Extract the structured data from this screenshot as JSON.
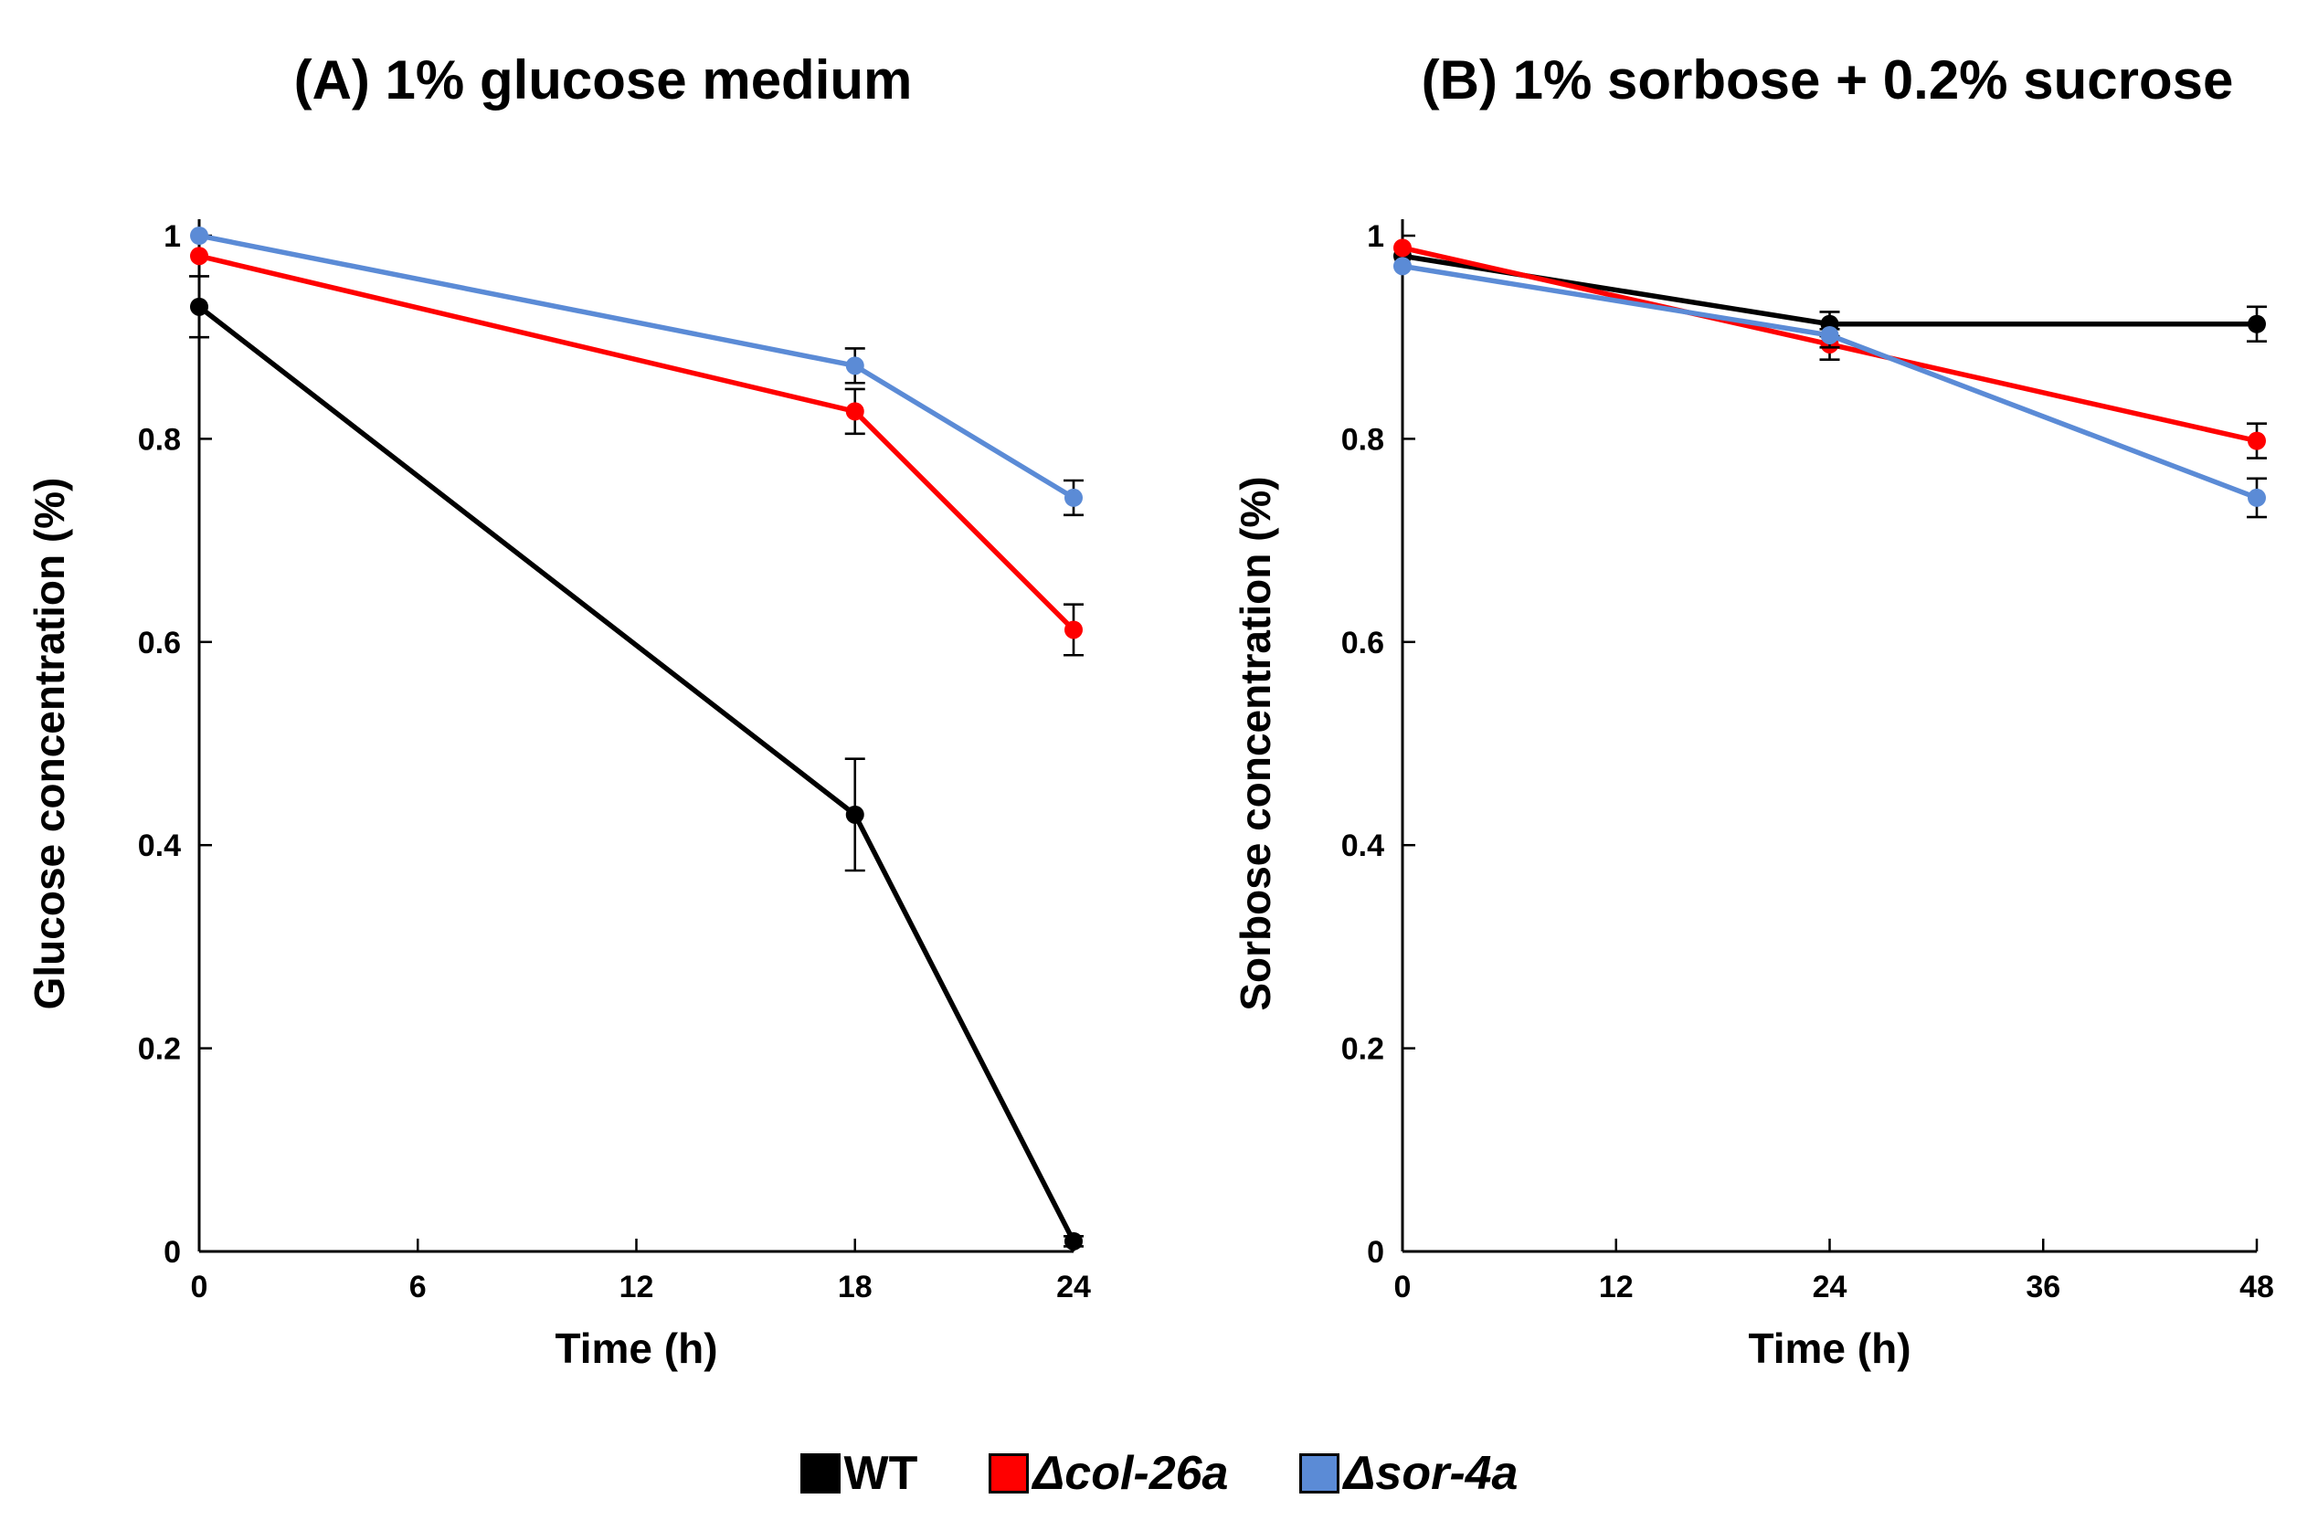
{
  "chart_data": [
    {
      "type": "line",
      "title": "(A) 1% glucose medium",
      "xlabel": "Time (h)",
      "ylabel": "Glucose concentration (%)",
      "xlim": [
        0,
        24
      ],
      "ylim": [
        0,
        1
      ],
      "xticks": [
        0,
        6,
        12,
        18,
        24
      ],
      "yticks": [
        0,
        0.2,
        0.4,
        0.6,
        0.8,
        1
      ],
      "ytick_labels": [
        "0",
        "0.2",
        "0.4",
        "0.6",
        "0.8",
        "1"
      ],
      "x": [
        0,
        18,
        24
      ],
      "series": [
        {
          "name": "WT",
          "color": "#000000",
          "values": [
            0.93,
            0.43,
            0.01
          ],
          "errors": [
            0.03,
            0.055,
            0.005
          ]
        },
        {
          "name": "Δcol-26a",
          "color": "#ff0000",
          "values": [
            0.98,
            0.827,
            0.612
          ],
          "errors": [
            0.0,
            0.022,
            0.025
          ]
        },
        {
          "name": "Δsor-4a",
          "color": "#5b8bd6",
          "values": [
            1.0,
            0.872,
            0.742
          ],
          "errors": [
            0.0,
            0.017,
            0.017
          ]
        }
      ]
    },
    {
      "type": "line",
      "title": "(B) 1% sorbose + 0.2% sucrose",
      "xlabel": "Time (h)",
      "ylabel": "Sorbose concentration (%)",
      "xlim": [
        0,
        48
      ],
      "ylim": [
        0,
        1
      ],
      "xticks": [
        0,
        12,
        24,
        36,
        48
      ],
      "yticks": [
        0,
        0.2,
        0.4,
        0.6,
        0.8,
        1
      ],
      "ytick_labels": [
        "0",
        "0.2",
        "0.4",
        "0.6",
        "0.8",
        "1"
      ],
      "x": [
        0,
        24,
        48
      ],
      "series": [
        {
          "name": "WT",
          "color": "#000000",
          "values": [
            0.98,
            0.913,
            0.913
          ],
          "errors": [
            0.0,
            0.012,
            0.017
          ]
        },
        {
          "name": "Δcol-26a",
          "color": "#ff0000",
          "values": [
            0.988,
            0.893,
            0.798
          ],
          "errors": [
            0.0,
            0.015,
            0.017
          ]
        },
        {
          "name": "Δsor-4a",
          "color": "#5b8bd6",
          "values": [
            0.97,
            0.902,
            0.742
          ],
          "errors": [
            0.0,
            0.012,
            0.019
          ]
        }
      ]
    }
  ],
  "legend": {
    "items": [
      {
        "label": "WT",
        "color": "#000000",
        "italic": false
      },
      {
        "label": "Δcol-26a",
        "color": "#ff0000",
        "italic": true
      },
      {
        "label": "Δsor-4a",
        "color": "#5b8bd6",
        "italic": true
      }
    ]
  }
}
